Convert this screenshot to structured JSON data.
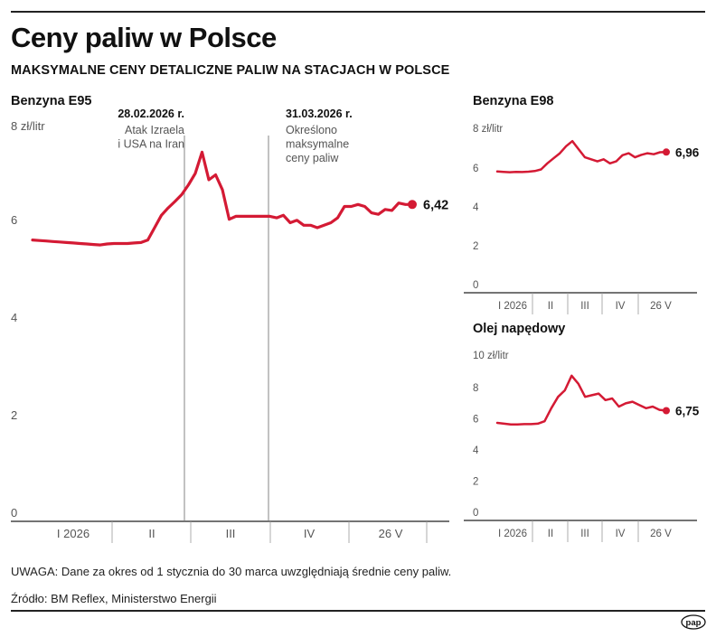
{
  "title": "Ceny paliw w Polsce",
  "subtitle": "MAKSYMALNE CENY DETALICZNE PALIW NA STACJACH W POLSCE",
  "note": "UWAGA: Dane za okres od 1 stycznia do 30 marca uwzględniają średnie ceny paliw.",
  "source": "Źródło: BM Reflex, Ministerstwo Energii",
  "logo_text": "pap",
  "colors": {
    "series": "#d41a34",
    "axis": "#222222",
    "text": "#111111",
    "muted": "#555555"
  },
  "chart_data": [
    {
      "type": "line",
      "title": "Benzyna E95",
      "unit_label": "8 zł/litr",
      "ylim": [
        0,
        8
      ],
      "yticks": [
        "0",
        "2",
        "4",
        "6"
      ],
      "month_labels": [
        "I 2026",
        "II",
        "III",
        "IV",
        "26 V"
      ],
      "last_value_label": "6,42",
      "annotations": [
        {
          "date": "28.02.2026 r.",
          "text": [
            "Atak Izraela",
            "i USA na Iran"
          ]
        },
        {
          "date": "31.03.2026 r.",
          "text": [
            "Określono",
            "maksymalne",
            "ceny paliw"
          ]
        }
      ],
      "series": [
        {
          "values": [
            5.7,
            5.69,
            5.68,
            5.67,
            5.66,
            5.65,
            5.64,
            5.63,
            5.62,
            5.61,
            5.6,
            5.62,
            5.63,
            5.63,
            5.63,
            5.64,
            5.65,
            5.7,
            5.95,
            6.2,
            6.35,
            6.48,
            6.62,
            6.82,
            7.05,
            7.48,
            6.92,
            7.02,
            6.72,
            6.12,
            6.18,
            6.18,
            6.18,
            6.18,
            6.18,
            6.18,
            6.15,
            6.2,
            6.05,
            6.1,
            6.0,
            6.0,
            5.95,
            6.0,
            6.05,
            6.15,
            6.38,
            6.38,
            6.42,
            6.38,
            6.25,
            6.22,
            6.32,
            6.3,
            6.45,
            6.42,
            6.42
          ]
        }
      ]
    },
    {
      "type": "line",
      "title": "Benzyna E98",
      "unit_label": "8 zł/litr",
      "ylim": [
        0,
        8
      ],
      "yticks": [
        "0",
        "2",
        "4",
        "6"
      ],
      "month_labels": [
        "I 2026",
        "II",
        "III",
        "IV",
        "26 V"
      ],
      "last_value_label": "6,96",
      "series": [
        {
          "values": [
            6.0,
            5.98,
            5.96,
            5.98,
            5.97,
            5.99,
            6.02,
            6.1,
            6.4,
            6.65,
            6.9,
            7.25,
            7.5,
            7.1,
            6.7,
            6.6,
            6.5,
            6.6,
            6.4,
            6.5,
            6.8,
            6.9,
            6.7,
            6.82,
            6.9,
            6.85,
            6.95,
            6.96
          ]
        }
      ]
    },
    {
      "type": "line",
      "title": "Olej napędowy",
      "unit_label": "10 zł/litr",
      "ylim": [
        0,
        10
      ],
      "yticks": [
        "0",
        "2",
        "4",
        "6",
        "8"
      ],
      "month_labels": [
        "I 2026",
        "II",
        "III",
        "IV",
        "26 V"
      ],
      "last_value_label": "6,75",
      "series": [
        {
          "values": [
            6.0,
            5.95,
            5.9,
            5.9,
            5.92,
            5.92,
            5.95,
            6.1,
            6.9,
            7.6,
            8.0,
            8.9,
            8.4,
            7.6,
            7.7,
            7.8,
            7.4,
            7.5,
            7.0,
            7.2,
            7.3,
            7.1,
            6.9,
            7.0,
            6.8,
            6.75
          ]
        }
      ]
    }
  ]
}
